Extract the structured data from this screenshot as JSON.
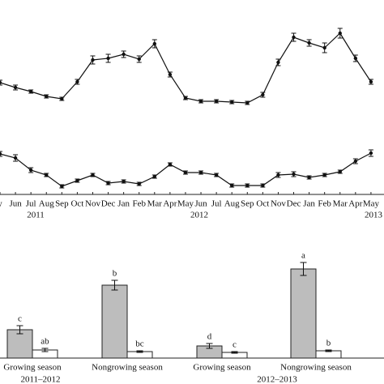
{
  "chart_data": [
    {
      "type": "line",
      "color": "#111",
      "ylim": [
        0,
        100
      ],
      "values": [
        38,
        32,
        27,
        21,
        18,
        39,
        66,
        68,
        73,
        67,
        86,
        48,
        19,
        15,
        15,
        14,
        13,
        23,
        63,
        94,
        87,
        81,
        99,
        68,
        39
      ],
      "errors": [
        3,
        3,
        2,
        2,
        2,
        3,
        5,
        5,
        4,
        4,
        5,
        3,
        2,
        2,
        2,
        2,
        2,
        3,
        4,
        5,
        4,
        6,
        6,
        4,
        3
      ]
    },
    {
      "type": "line",
      "color": "#111",
      "ylim": [
        0,
        70
      ],
      "categories": [
        "y",
        "Jun",
        "Jul",
        "Aug",
        "Sep",
        "Oct",
        "Nov",
        "Dec",
        "Jan",
        "Feb",
        "Mar",
        "Apr",
        "May",
        "Jun",
        "Jul",
        "Aug",
        "Sep",
        "Oct",
        "Nov",
        "Dec",
        "Jan",
        "Feb",
        "Mar",
        "Apr",
        "May"
      ],
      "values": [
        50,
        45,
        30,
        24,
        10,
        17,
        24,
        14,
        16,
        13,
        22,
        37,
        27,
        27,
        24,
        11,
        11,
        11,
        24,
        25,
        21,
        24,
        28,
        41,
        51
      ],
      "errors": [
        3,
        4,
        3,
        2,
        2,
        2,
        2,
        2,
        2,
        2,
        2,
        2,
        2,
        2,
        2,
        2,
        2,
        2,
        3,
        3,
        2,
        2,
        2,
        3,
        4
      ],
      "years": [
        "2011",
        "2012",
        "2013"
      ]
    },
    {
      "type": "bar",
      "ylim": [
        0,
        120
      ],
      "categories": [
        "Growing season",
        "Nongrowing season",
        "Growing season",
        "Nongrowing season"
      ],
      "groups": [
        "2011–2012",
        "2012–2013"
      ],
      "series": [
        {
          "color": "#bdbdbd",
          "values": [
            35,
            90,
            15,
            110
          ],
          "errors": [
            5,
            6,
            3,
            8
          ],
          "letters": [
            "c",
            "b",
            "d",
            "a"
          ]
        },
        {
          "color": "#ffffff",
          "values": [
            10,
            8,
            7,
            9
          ],
          "errors": [
            2,
            1,
            1,
            1
          ],
          "letters": [
            "ab",
            "bc",
            "c",
            "b"
          ]
        }
      ]
    }
  ]
}
